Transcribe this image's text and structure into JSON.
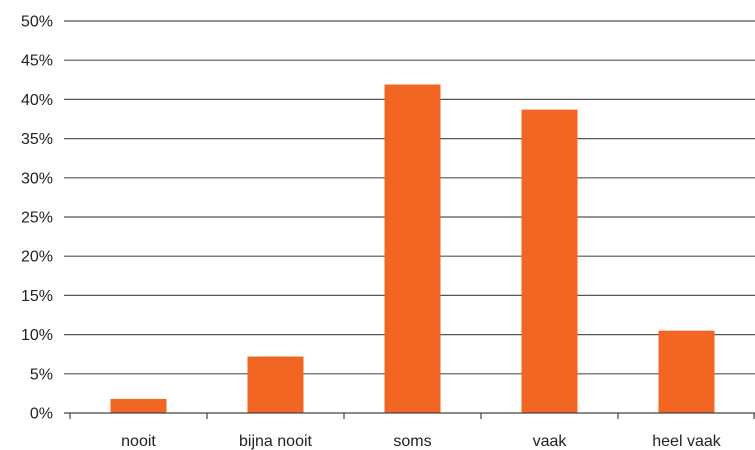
{
  "chart_data": {
    "type": "bar",
    "categories": [
      "nooit",
      "bijna nooit",
      "soms",
      "vaak",
      "heel vaak"
    ],
    "values": [
      1.8,
      7.2,
      41.9,
      38.7,
      10.5
    ],
    "ylim": [
      0,
      50
    ],
    "yticks": [
      "0%",
      "5%",
      "10%",
      "15%",
      "20%",
      "25%",
      "30%",
      "35%",
      "40%",
      "45%",
      "50%"
    ],
    "grid": true,
    "legend": "none",
    "bar_color": "#F26522"
  }
}
